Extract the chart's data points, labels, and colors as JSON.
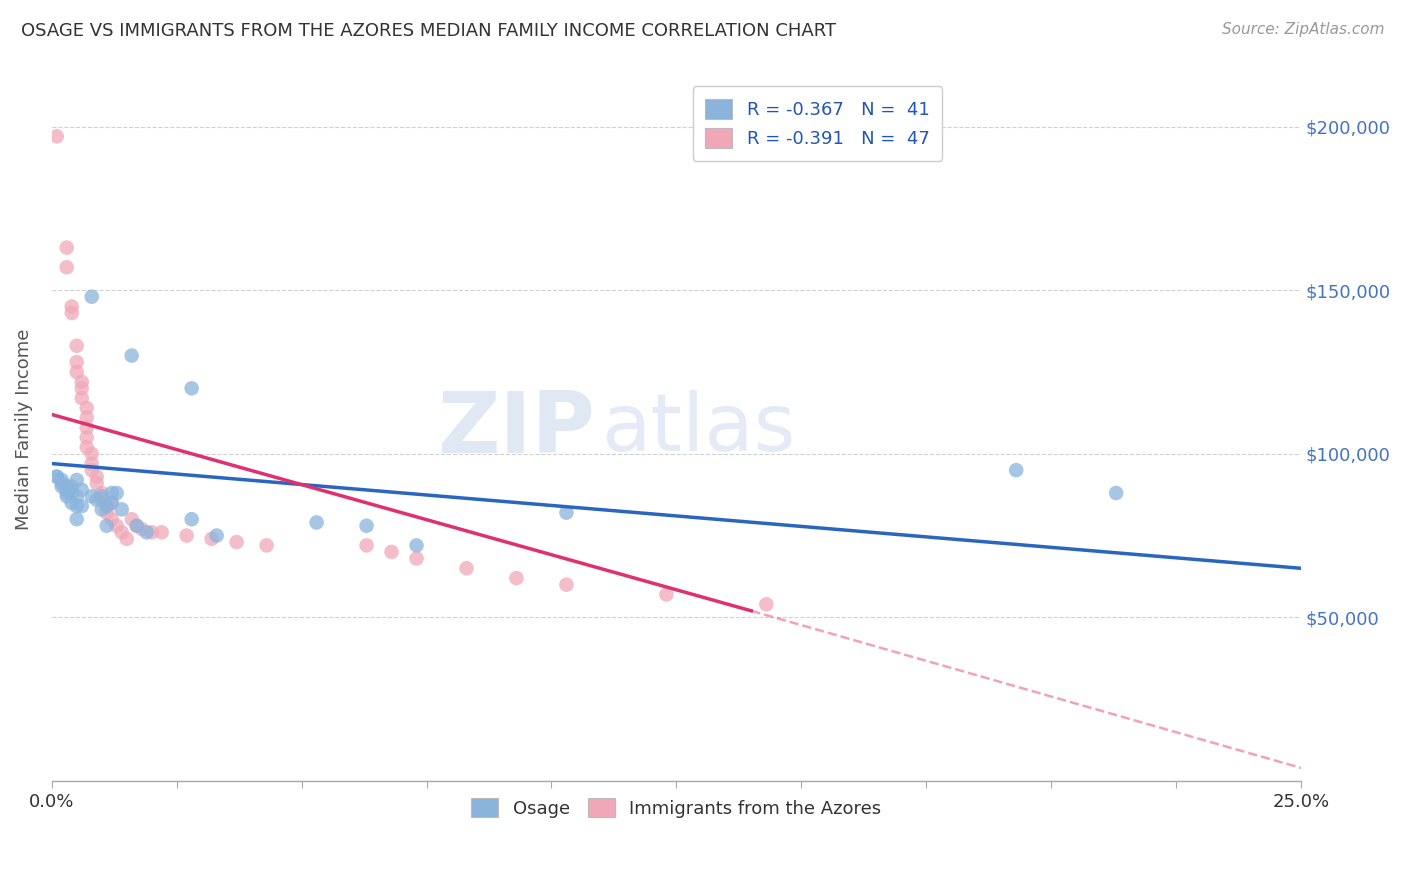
{
  "title": "OSAGE VS IMMIGRANTS FROM THE AZORES MEDIAN FAMILY INCOME CORRELATION CHART",
  "source": "Source: ZipAtlas.com",
  "ylabel": "Median Family Income",
  "yticks": [
    0,
    50000,
    100000,
    150000,
    200000
  ],
  "ytick_labels": [
    "",
    "$50,000",
    "$100,000",
    "$150,000",
    "$200,000"
  ],
  "xmin": 0.0,
  "xmax": 0.25,
  "ymin": 0,
  "ymax": 215000,
  "legend_blue_label": "R = -0.367   N =  41",
  "legend_pink_label": "R = -0.391   N =  47",
  "watermark_zip": "ZIP",
  "watermark_atlas": "atlas",
  "legend_bottom_blue": "Osage",
  "legend_bottom_pink": "Immigrants from the Azores",
  "blue_color": "#8ab4dc",
  "pink_color": "#f0a8b8",
  "blue_line_color": "#2866c0",
  "pink_line_color": "#e03070",
  "blue_scatter": [
    [
      0.001,
      93000
    ],
    [
      0.001,
      93000
    ],
    [
      0.002,
      92000
    ],
    [
      0.002,
      91000
    ],
    [
      0.002,
      90000
    ],
    [
      0.003,
      90000
    ],
    [
      0.003,
      89000
    ],
    [
      0.003,
      88000
    ],
    [
      0.003,
      87000
    ],
    [
      0.004,
      90000
    ],
    [
      0.004,
      88000
    ],
    [
      0.004,
      85000
    ],
    [
      0.005,
      92000
    ],
    [
      0.005,
      87000
    ],
    [
      0.005,
      84000
    ],
    [
      0.005,
      80000
    ],
    [
      0.006,
      89000
    ],
    [
      0.006,
      84000
    ],
    [
      0.008,
      148000
    ],
    [
      0.008,
      87000
    ],
    [
      0.009,
      86000
    ],
    [
      0.01,
      87000
    ],
    [
      0.01,
      83000
    ],
    [
      0.011,
      84000
    ],
    [
      0.011,
      78000
    ],
    [
      0.012,
      88000
    ],
    [
      0.012,
      85000
    ],
    [
      0.013,
      88000
    ],
    [
      0.014,
      83000
    ],
    [
      0.016,
      130000
    ],
    [
      0.017,
      78000
    ],
    [
      0.019,
      76000
    ],
    [
      0.028,
      120000
    ],
    [
      0.028,
      80000
    ],
    [
      0.033,
      75000
    ],
    [
      0.053,
      79000
    ],
    [
      0.063,
      78000
    ],
    [
      0.073,
      72000
    ],
    [
      0.103,
      82000
    ],
    [
      0.193,
      95000
    ],
    [
      0.213,
      88000
    ]
  ],
  "pink_scatter": [
    [
      0.001,
      197000
    ],
    [
      0.003,
      163000
    ],
    [
      0.003,
      157000
    ],
    [
      0.004,
      145000
    ],
    [
      0.004,
      143000
    ],
    [
      0.005,
      133000
    ],
    [
      0.005,
      128000
    ],
    [
      0.005,
      125000
    ],
    [
      0.006,
      122000
    ],
    [
      0.006,
      120000
    ],
    [
      0.006,
      117000
    ],
    [
      0.007,
      114000
    ],
    [
      0.007,
      111000
    ],
    [
      0.007,
      108000
    ],
    [
      0.007,
      105000
    ],
    [
      0.007,
      102000
    ],
    [
      0.008,
      100000
    ],
    [
      0.008,
      97000
    ],
    [
      0.008,
      95000
    ],
    [
      0.009,
      93000
    ],
    [
      0.009,
      91000
    ],
    [
      0.01,
      88000
    ],
    [
      0.01,
      86000
    ],
    [
      0.011,
      84000
    ],
    [
      0.011,
      82000
    ],
    [
      0.012,
      80000
    ],
    [
      0.012,
      85000
    ],
    [
      0.013,
      78000
    ],
    [
      0.014,
      76000
    ],
    [
      0.015,
      74000
    ],
    [
      0.016,
      80000
    ],
    [
      0.017,
      78000
    ],
    [
      0.018,
      77000
    ],
    [
      0.02,
      76000
    ],
    [
      0.022,
      76000
    ],
    [
      0.027,
      75000
    ],
    [
      0.032,
      74000
    ],
    [
      0.037,
      73000
    ],
    [
      0.043,
      72000
    ],
    [
      0.063,
      72000
    ],
    [
      0.068,
      70000
    ],
    [
      0.073,
      68000
    ],
    [
      0.083,
      65000
    ],
    [
      0.093,
      62000
    ],
    [
      0.103,
      60000
    ],
    [
      0.123,
      57000
    ],
    [
      0.143,
      54000
    ]
  ],
  "blue_line": [
    [
      0.0,
      97000
    ],
    [
      0.25,
      65000
    ]
  ],
  "pink_line_solid": [
    [
      0.0,
      112000
    ],
    [
      0.14,
      52000
    ]
  ],
  "pink_line_dashed": [
    [
      0.14,
      52000
    ],
    [
      0.25,
      4000
    ]
  ]
}
